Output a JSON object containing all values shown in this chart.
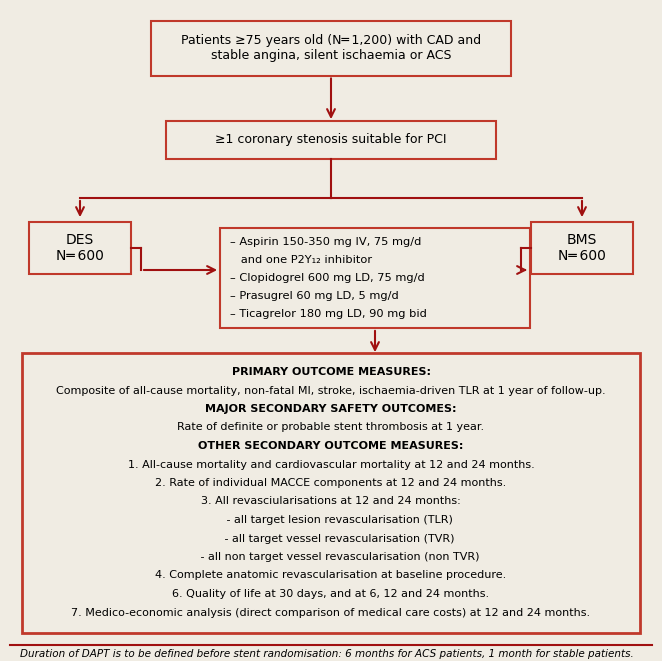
{
  "bg_color": "#f0ece3",
  "border_color": "#c0392b",
  "dark_red": "#a01010",
  "figsize": [
    6.62,
    6.61
  ],
  "dpi": 100,
  "box1_text": "Patients ≥75 years old (N═ 1,200) with CAD and\nstable angina, silent ischaemia or ACS",
  "box2_text": "≥1 coronary stenosis suitable for PCI",
  "box_des_text": "DES\nN═ 600",
  "box_bms_text": "BMS\nN═ 600",
  "box_meds_lines": [
    "– Aspirin 150-350 mg IV, 75 mg/d",
    "   and one P2Y₁₂ inhibitor",
    "– Clopidogrel 600 mg LD, 75 mg/d",
    "– Prasugrel 60 mg LD, 5 mg/d",
    "– Ticagrelor 180 mg LD, 90 mg bid"
  ],
  "outcome_lines": [
    {
      "text": "PRIMARY OUTCOME MEASURES:",
      "bold": true
    },
    {
      "text": "Composite of all-cause mortality, non-fatal MI, stroke, ischaemia-driven TLR at 1 year of follow-up.",
      "bold": false
    },
    {
      "text": "MAJOR SECONDARY SAFETY OUTCOMES:",
      "bold": true
    },
    {
      "text": "Rate of definite or probable stent thrombosis at 1 year.",
      "bold": false
    },
    {
      "text": "OTHER SECONDARY OUTCOME MEASURES:",
      "bold": true
    },
    {
      "text": "1. All-cause mortality and cardiovascular mortality at 12 and 24 months.",
      "bold": false
    },
    {
      "text": "2. Rate of individual MACCE components at 12 and 24 months.",
      "bold": false
    },
    {
      "text": "3. All revasciularisations at 12 and 24 months:",
      "bold": false
    },
    {
      "text": "     - all target lesion revascularisation (TLR)",
      "bold": false
    },
    {
      "text": "     - all target vessel revascularisation (TVR)",
      "bold": false
    },
    {
      "text": "     - all non target vessel revascularisation (non TVR)",
      "bold": false
    },
    {
      "text": "4. Complete anatomic revascularisation at baseline procedure.",
      "bold": false
    },
    {
      "text": "6. Quality of life at 30 days, and at 6, 12 and 24 months.",
      "bold": false
    },
    {
      "text": "7. Medico-economic analysis (direct comparison of medical care costs) at 12 and 24 months.",
      "bold": false
    }
  ],
  "footnote": "Duration of DAPT is to be defined before stent randomisation: 6 months for ACS patients, 1 month for stable patients."
}
